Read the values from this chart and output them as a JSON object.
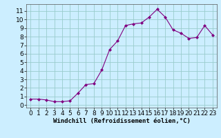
{
  "x": [
    0,
    1,
    2,
    3,
    4,
    5,
    6,
    7,
    8,
    9,
    10,
    11,
    12,
    13,
    14,
    15,
    16,
    17,
    18,
    19,
    20,
    21,
    22,
    23
  ],
  "y": [
    0.7,
    0.7,
    0.6,
    0.4,
    0.4,
    0.5,
    1.4,
    2.4,
    2.5,
    4.1,
    6.5,
    7.5,
    9.3,
    9.5,
    9.6,
    10.3,
    11.2,
    10.3,
    8.8,
    8.4,
    7.8,
    7.9,
    9.3,
    8.2
  ],
  "line_color": "#800080",
  "marker": "D",
  "marker_size": 2.0,
  "bg_color": "#cceeff",
  "grid_color": "#99cccc",
  "xlabel": "Windchill (Refroidissement éolien,°C)",
  "xlim": [
    -0.5,
    23.5
  ],
  "ylim": [
    -0.3,
    11.8
  ],
  "yticks": [
    0,
    1,
    2,
    3,
    4,
    5,
    6,
    7,
    8,
    9,
    10,
    11
  ],
  "xticks": [
    0,
    1,
    2,
    3,
    4,
    5,
    6,
    7,
    8,
    9,
    10,
    11,
    12,
    13,
    14,
    15,
    16,
    17,
    18,
    19,
    20,
    21,
    22,
    23
  ],
  "xlabel_fontsize": 6.5,
  "tick_fontsize": 6.5
}
